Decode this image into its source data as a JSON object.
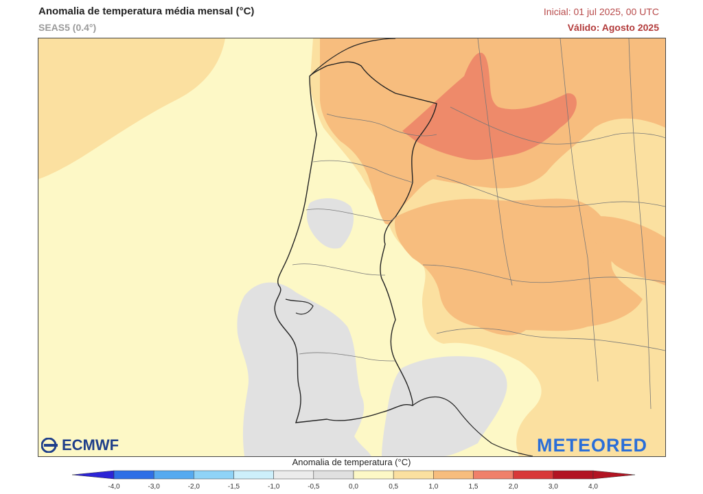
{
  "header": {
    "title": "Anomalia de temperatura média mensal (°C)",
    "subtitle": "SEAS5 (0.4°)",
    "initial": "Inicial: 01 jul 2025, 00 UTC",
    "valid": "Válido: Agosto 2025"
  },
  "legend": {
    "title": "Anomalia de temperatura (°C)",
    "ticks": [
      "-4,0",
      "-3,0",
      "-2,0",
      "-1,5",
      "-1,0",
      "-0,5",
      "0,0",
      "0,5",
      "1,0",
      "1,5",
      "2,0",
      "3,0",
      "4,0"
    ],
    "colors": [
      "#2c24d6",
      "#2f6fe6",
      "#56aaf0",
      "#8fd3f7",
      "#cdeffb",
      "#ececec",
      "#e0e0e0",
      "#fdf8c6",
      "#fbe0a0",
      "#f7bd7e",
      "#f0806a",
      "#d83838",
      "#b21422"
    ]
  },
  "logos": {
    "ecmwf": "ECMWF",
    "meteored": "METEORED"
  },
  "map": {
    "colors": {
      "sea_base": "#fdf8c6",
      "anomaly_1_0_1_5": "#fbe0a0",
      "anomaly_1_5_2_0": "#f7bd7e",
      "anomaly_2_0_3_0": "#ee8a6a",
      "anomaly_neutral": "#e1e1e1",
      "border": "#222222",
      "region_line": "#777777"
    }
  }
}
